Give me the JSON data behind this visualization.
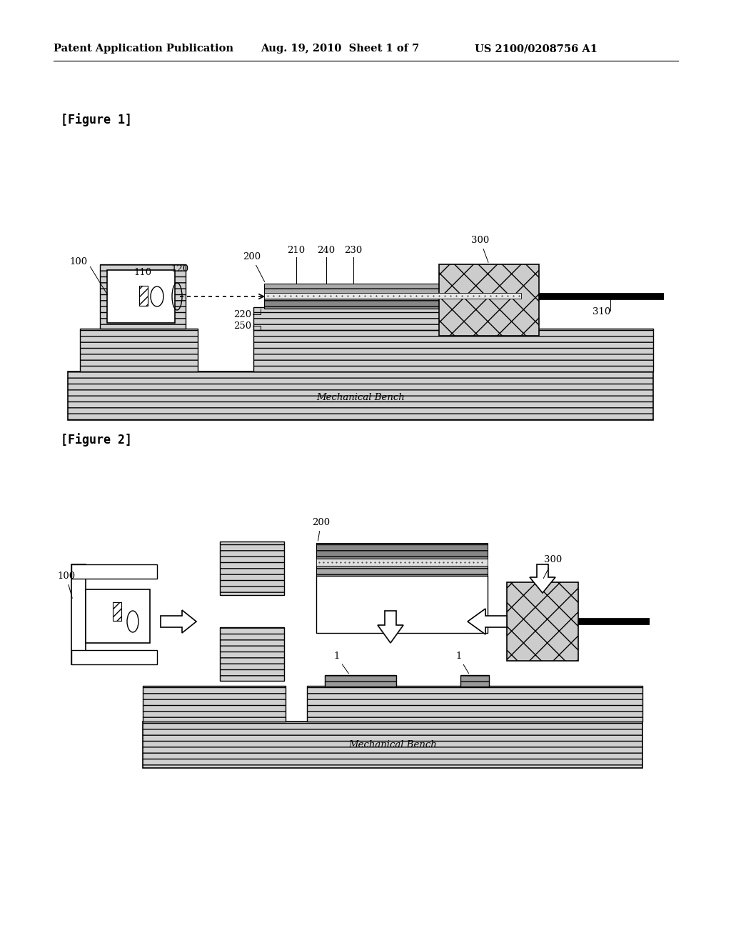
{
  "bg_color": "#ffffff",
  "header_left": "Patent Application Publication",
  "header_mid": "Aug. 19, 2010  Sheet 1 of 7",
  "header_right": "US 2100/0208756 A1",
  "fig1_label": "[Figure 1]",
  "fig2_label": "[Figure 2]",
  "mechanical_bench_text": "Mechanical Bench",
  "hatch_gray": "#bbbbbb",
  "hatch_dark": "#888888",
  "cross_hatch_color": "#cccccc"
}
